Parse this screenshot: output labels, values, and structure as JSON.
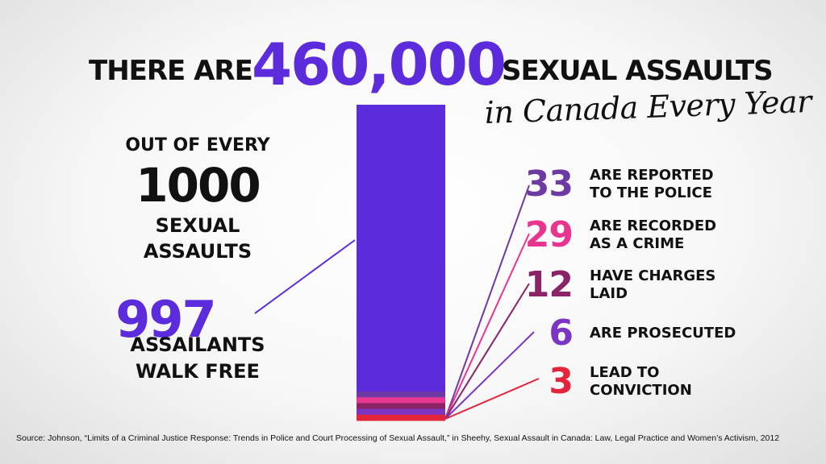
{
  "header": {
    "title_pre": "THERE ARE",
    "title_number": "460,000",
    "title_post": "SEXUAL ASSAULTS",
    "subtitle": "in Canada Every Year"
  },
  "left_panel": {
    "out_of_every": "OUT OF EVERY",
    "total_number": "1000",
    "sexual_assaults_line1": "SEXUAL",
    "sexual_assaults_line2": "ASSAULTS",
    "free_number": "997",
    "walk_free_line1": "ASSAILANTS",
    "walk_free_line2": "WALK FREE"
  },
  "chart_data": {
    "type": "bar",
    "total": 1000,
    "segments": [
      {
        "label": "ASSAILANTS WALK FREE",
        "value": 997,
        "color": "#5b2bdc"
      },
      {
        "label_line1": "ARE REPORTED",
        "label_line2": "TO THE POLICE",
        "value": 33,
        "display": "33",
        "color": "#6d3aa4"
      },
      {
        "label_line1": "ARE RECORDED",
        "label_line2": "AS A CRIME",
        "value": 29,
        "display": "29",
        "color": "#e8358f"
      },
      {
        "label_line1": "HAVE CHARGES",
        "label_line2": "LAID",
        "value": 12,
        "display": "12",
        "color": "#8a2466"
      },
      {
        "label_line1": "ARE PROSECUTED",
        "label_line2": "",
        "value": 6,
        "display": "6",
        "color": "#7c34c4"
      },
      {
        "label_line1": "LEAD TO",
        "label_line2": "CONVICTION",
        "value": 3,
        "display": "3",
        "color": "#e3243b"
      }
    ]
  },
  "colors": {
    "accent_purple": "#5b2bdc",
    "text_dark": "#111111"
  },
  "footer": {
    "source": "Source: Johnson, “Limits of a Criminal Justice Response: Trends in Police and Court Processing of Sexual Assault,” in Sheehy, Sexual Assault in Canada: Law, Legal Practice and Women’s Activism, 2012"
  }
}
